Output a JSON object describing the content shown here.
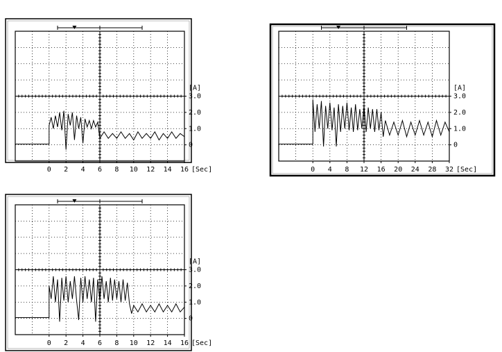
{
  "chart_data": [
    {
      "type": "line",
      "xlabel": "[Sec]",
      "ylabel": "[A]",
      "color": "#000000",
      "xlim": [
        -4,
        16
      ],
      "ylim": [
        -1,
        7
      ],
      "xticks": [
        0,
        2,
        4,
        6,
        8,
        10,
        12,
        14,
        16
      ],
      "yticks": [
        {
          "value": 3,
          "label": "3.0"
        },
        {
          "value": 2,
          "label": "2.0"
        },
        {
          "value": 1,
          "label": "1.0"
        },
        0
      ],
      "x": [
        -4,
        0,
        0,
        0.25,
        0.5,
        0.75,
        1,
        1.25,
        1.5,
        1.75,
        2,
        2.25,
        2.5,
        2.75,
        3,
        3.25,
        3.5,
        3.75,
        4,
        4.25,
        4.5,
        4.75,
        5,
        5.25,
        5.5,
        5.75,
        6,
        6.5,
        7,
        7.5,
        8,
        8.5,
        9,
        9.5,
        10,
        10.5,
        11,
        11.5,
        12,
        12.5,
        13,
        13.5,
        14,
        14.5,
        15,
        15.5,
        16
      ],
      "values": [
        0.05,
        0.05,
        1.2,
        1.7,
        1.0,
        1.8,
        1.1,
        2.0,
        0.9,
        2.1,
        -0.3,
        1.9,
        1.2,
        2.0,
        0.3,
        1.8,
        1.0,
        1.7,
        0.1,
        1.6,
        1.1,
        1.5,
        1.0,
        1.5,
        1.1,
        1.4,
        0.4,
        0.8,
        0.4,
        0.7,
        0.4,
        0.8,
        0.4,
        0.7,
        0.3,
        0.8,
        0.4,
        0.7,
        0.4,
        0.8,
        0.3,
        0.7,
        0.4,
        0.8,
        0.4,
        0.7,
        0.5
      ]
    },
    {
      "type": "line",
      "xlabel": "[Sec]",
      "ylabel": "[A]",
      "color": "#000000",
      "xlim": [
        -8,
        32
      ],
      "ylim": [
        -1,
        7
      ],
      "xticks": [
        0,
        4,
        8,
        12,
        16,
        20,
        24,
        28,
        32
      ],
      "yticks": [
        {
          "value": 3,
          "label": "3.0"
        },
        {
          "value": 2,
          "label": "2.0"
        },
        {
          "value": 1,
          "label": "1.0"
        },
        0
      ],
      "x": [
        -8,
        0,
        0,
        0.5,
        1,
        1.5,
        2,
        2.5,
        3,
        3.5,
        4,
        4.5,
        5,
        5.5,
        6,
        6.5,
        7,
        7.5,
        8,
        8.5,
        9,
        9.5,
        10,
        10.5,
        11,
        11.5,
        12,
        12.5,
        13,
        13.5,
        14,
        14.5,
        15,
        15.5,
        16,
        16.5,
        17,
        18,
        19,
        20,
        21,
        22,
        23,
        24,
        25,
        26,
        27,
        28,
        29,
        30,
        31,
        32
      ],
      "values": [
        0.05,
        0.05,
        2.8,
        0.8,
        2.5,
        1.0,
        2.7,
        -0.1,
        2.4,
        1.0,
        2.6,
        0.9,
        2.3,
        -0.1,
        2.5,
        0.8,
        2.4,
        1.0,
        2.6,
        0.9,
        2.3,
        0.8,
        2.5,
        0.9,
        2.2,
        1.0,
        2.4,
        0.8,
        2.3,
        1.0,
        2.2,
        0.8,
        2.2,
        0.9,
        2.0,
        0.5,
        1.5,
        0.6,
        1.4,
        0.6,
        1.5,
        0.5,
        1.4,
        0.6,
        1.5,
        0.6,
        1.4,
        0.5,
        1.5,
        0.6,
        1.4,
        0.8
      ]
    },
    {
      "type": "line",
      "xlabel": "[Sec]",
      "ylabel": "[A]",
      "color": "#000000",
      "xlim": [
        -4,
        16
      ],
      "ylim": [
        -1,
        7
      ],
      "xticks": [
        0,
        2,
        4,
        6,
        8,
        10,
        12,
        14,
        16
      ],
      "yticks": [
        {
          "value": 3,
          "label": "3.0"
        },
        {
          "value": 2,
          "label": "2.0"
        },
        {
          "value": 1,
          "label": "1.0"
        },
        0
      ],
      "x": [
        -4,
        0,
        0,
        0.25,
        0.5,
        0.75,
        1,
        1.25,
        1.5,
        1.75,
        2,
        2.25,
        2.5,
        2.75,
        3,
        3.25,
        3.5,
        3.75,
        4,
        4.25,
        4.5,
        4.75,
        5,
        5.25,
        5.5,
        5.75,
        6,
        6.25,
        6.5,
        6.75,
        7,
        7.25,
        7.5,
        7.75,
        8,
        8.25,
        8.5,
        8.75,
        9,
        9.25,
        9.5,
        9.75,
        10,
        10.5,
        11,
        11.5,
        12,
        12.5,
        13,
        13.5,
        14,
        14.5,
        15,
        15.5,
        16
      ],
      "values": [
        0.05,
        0.05,
        2.0,
        1.2,
        2.6,
        1.0,
        2.4,
        -0.2,
        2.5,
        1.1,
        2.6,
        1.0,
        2.3,
        1.2,
        2.6,
        1.1,
        -0.1,
        2.5,
        1.0,
        2.6,
        1.2,
        2.4,
        1.0,
        2.5,
        -0.2,
        2.4,
        1.1,
        2.6,
        1.2,
        2.3,
        1.0,
        2.5,
        1.1,
        2.4,
        1.2,
        2.3,
        1.0,
        2.4,
        1.1,
        2.2,
        0.9,
        0.3,
        0.8,
        0.4,
        0.9,
        0.4,
        0.8,
        0.4,
        0.9,
        0.4,
        0.8,
        0.4,
        0.9,
        0.4,
        0.7
      ]
    }
  ]
}
